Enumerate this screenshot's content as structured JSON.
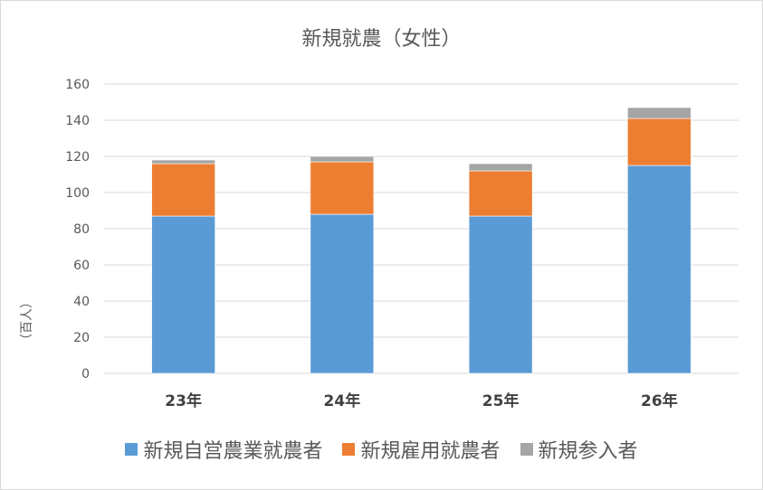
{
  "chart_data": {
    "type": "bar",
    "stacked": true,
    "title": "新規就農（女性）",
    "ylabel": "（百人）",
    "xlabel": "",
    "categories": [
      "23年",
      "24年",
      "25年",
      "26年"
    ],
    "series": [
      {
        "name": "新規自営農業就農者",
        "color": "#5b9bd5",
        "values": [
          87,
          88,
          87,
          115
        ]
      },
      {
        "name": "新規雇用就農者",
        "color": "#ed7d31",
        "values": [
          29,
          29,
          25,
          26
        ]
      },
      {
        "name": "新規参入者",
        "color": "#a5a5a5",
        "values": [
          2,
          3,
          4,
          6
        ]
      }
    ],
    "ylim": [
      0,
      160
    ],
    "yticks": [
      0,
      20,
      40,
      60,
      80,
      100,
      120,
      140,
      160
    ],
    "grid": true,
    "legend": "bottom"
  }
}
